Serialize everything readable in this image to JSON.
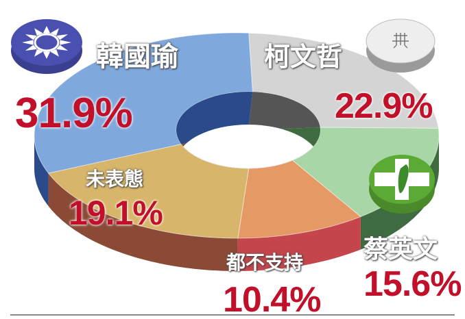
{
  "chart_data": {
    "type": "pie",
    "style": "3d-donut",
    "slices": [
      {
        "label": "柯文哲",
        "value": 22.9,
        "value_label": "22.9%",
        "color": "#d4d4d4",
        "side_color": "#5a5a5a",
        "logo": "white-party-logo-icon"
      },
      {
        "label": "蔡英文",
        "value": 15.6,
        "value_label": "15.6%",
        "color": "#a9d6a6",
        "side_color": "#3f6b40",
        "logo": "dpp-logo-icon"
      },
      {
        "label": "都不支持",
        "value": 10.4,
        "value_label": "10.4%",
        "color": "#e59a66",
        "side_color": "#c4454b"
      },
      {
        "label": "未表態",
        "value": 19.1,
        "value_label": "19.1%",
        "color": "#d7b56a",
        "side_color": "#8b4a36"
      },
      {
        "label": "韓國瑜",
        "value": 31.9,
        "value_label": "31.9%",
        "color": "#7fa8dc",
        "side_color": "#2a4a8a",
        "logo": "kmt-logo-icon"
      }
    ],
    "label_color": "#c0102a",
    "legend": "none"
  }
}
